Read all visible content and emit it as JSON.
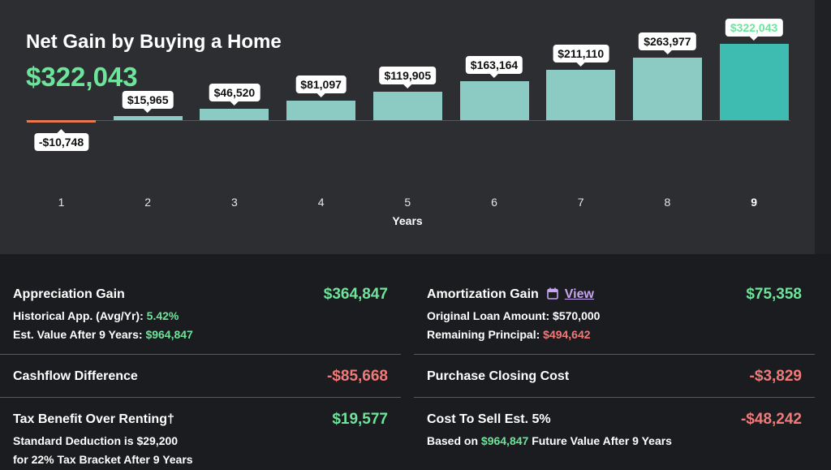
{
  "chart": {
    "title": "Net Gain by Buying a Home",
    "headline_value": "$322,043",
    "xlabel": "Years"
  },
  "chart_data": {
    "type": "bar",
    "title": "Net Gain by Buying a Home",
    "xlabel": "Years",
    "ylabel": "",
    "categories": [
      "1",
      "2",
      "3",
      "4",
      "5",
      "6",
      "7",
      "8",
      "9"
    ],
    "values": [
      -10748,
      15965,
      46520,
      81097,
      119905,
      163164,
      211110,
      263977,
      322043
    ],
    "value_labels": [
      "-$10,748",
      "$15,965",
      "$46,520",
      "$81,097",
      "$119,905",
      "$163,164",
      "$211,110",
      "$263,977",
      "$322,043"
    ],
    "ylim": [
      -20000,
      330000
    ],
    "grid": false,
    "colors": {
      "negative": "#e9774f",
      "positive": "#8ccbc4",
      "highlight": "#3ebcb1"
    }
  },
  "summary": {
    "appreciation": {
      "label": "Appreciation Gain",
      "amount": "$364,847",
      "line1_text": "Historical App. (Avg/Yr): ",
      "line1_value": "5.42%",
      "line2_text_a": "Est. Value After ",
      "line2_years": "9",
      "line2_text_b": " Years: ",
      "line2_value": "$964,847"
    },
    "amortization": {
      "label": "Amortization Gain",
      "icon": "calendar-icon",
      "link": "View",
      "amount": "$75,358",
      "line1_text": "Original Loan Amount: ",
      "line1_value": "$570,000",
      "line2_text": "Remaining Principal: ",
      "line2_value": "$494,642"
    },
    "cashflow": {
      "label": "Cashflow Difference",
      "amount": "-$85,668"
    },
    "closing": {
      "label": "Purchase Closing Cost",
      "amount": "-$3,829"
    },
    "tax": {
      "label": "Tax Benefit Over Renting†",
      "amount": "$19,577",
      "line1_text": "Standard Deduction is ",
      "line1_value": "$29,200",
      "line2_text_a": "for ",
      "line2_value": "22%",
      "line2_text_b": " Tax Bracket After ",
      "line2_years": "9",
      "line2_text_c": " Years"
    },
    "sell": {
      "label": "Cost To Sell Est. 5%",
      "amount": "-$48,242",
      "line1_text_a": "Based on ",
      "line1_value": "$964,847",
      "line1_text_b": " Future Value After ",
      "line1_years": "9",
      "line1_text_c": " Years"
    }
  }
}
